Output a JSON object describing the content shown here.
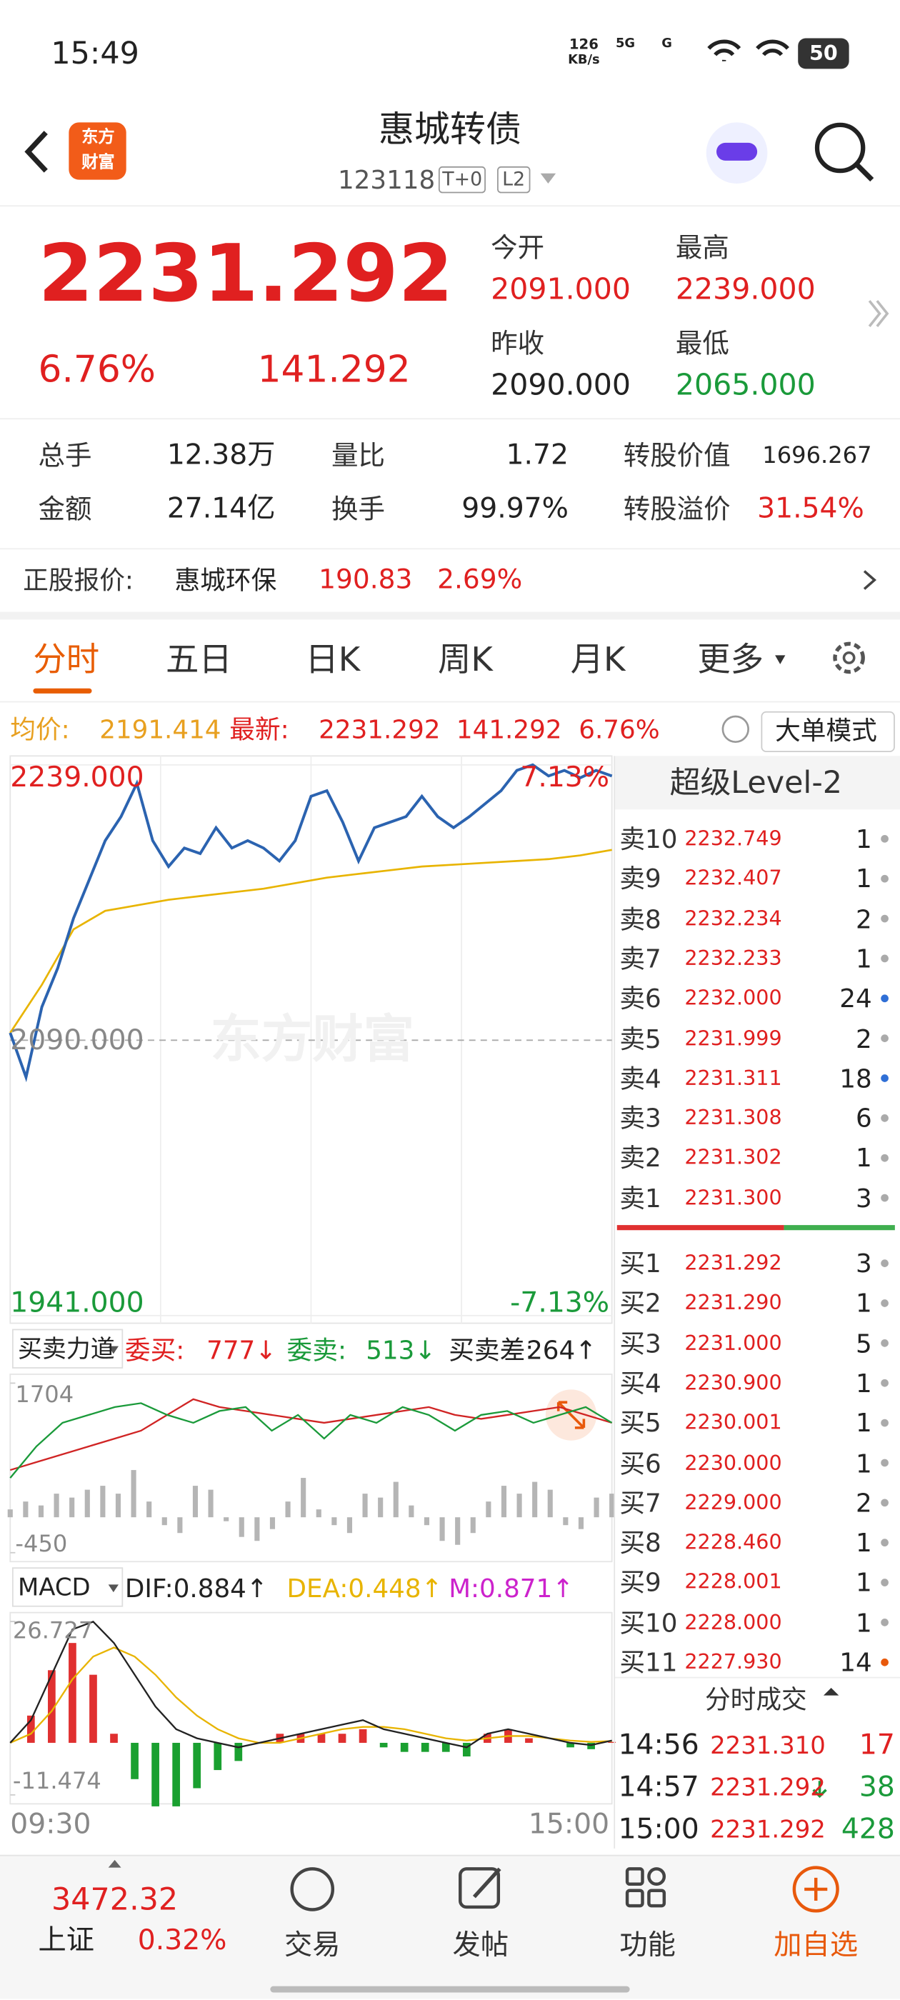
{
  "status_bar": {
    "time": "15:49",
    "net_speed": "126",
    "net_unit": "KB/s",
    "network": [
      "5G",
      "G"
    ],
    "battery": "50"
  },
  "header": {
    "logo": [
      "东方",
      "财富"
    ],
    "title": "惠城转债",
    "code": "123118",
    "tags": [
      "T+0",
      "L2"
    ]
  },
  "quote": {
    "price": "2231.292",
    "change_pct": "6.76%",
    "change": "141.292",
    "open_label": "今开",
    "open": "2091.000",
    "high_label": "最高",
    "high": "2239.000",
    "prev_close_label": "昨收",
    "prev_close": "2090.000",
    "low_label": "最低",
    "low": "2065.000"
  },
  "stats": [
    [
      "总手",
      "12.38万",
      "量比",
      "1.72",
      "转股价值",
      "1696.267"
    ],
    [
      "金额",
      "27.14亿",
      "换手",
      "99.97%",
      "转股溢价",
      "31.54%"
    ]
  ],
  "underlying": {
    "label": "正股报价:",
    "name": "惠城环保",
    "price": "190.83",
    "change_pct": "2.69%"
  },
  "tabs": [
    "分时",
    "五日",
    "日K",
    "周K",
    "月K",
    "更多"
  ],
  "intraday": {
    "avg_label": "均价:",
    "avg": "2191.414",
    "latest_label": "最新:",
    "latest": "2231.292",
    "change": "141.292",
    "change_pct": "6.76%",
    "mode": "大单模式",
    "watermark": "东方财富",
    "ylim": [
      1941,
      2239
    ],
    "yticks": [
      {
        "value": 2239,
        "label": "2239.000"
      },
      {
        "value": 2090,
        "label": "2090.000"
      },
      {
        "value": 1941,
        "label": "1941.000"
      }
    ],
    "pct_labels": [
      "7.13%",
      "-7.13%"
    ],
    "x_labels": [
      "09:30",
      "15:00"
    ],
    "price": [
      2094,
      2070,
      2108,
      2129,
      2156,
      2177,
      2198,
      2211,
      2229,
      2198,
      2184,
      2194,
      2191,
      2205,
      2194,
      2198,
      2194,
      2187,
      2198,
      2222,
      2225,
      2208,
      2187,
      2205,
      2208,
      2211,
      2222,
      2211,
      2205,
      2211,
      2218,
      2225,
      2236,
      2239,
      2233,
      2236,
      2232,
      2236,
      2233
    ],
    "avg_price": [
      2094,
      2120,
      2150,
      2160,
      2163,
      2166,
      2168,
      2170,
      2172,
      2175,
      2178,
      2180,
      2182,
      2184,
      2185,
      2186,
      2187,
      2188,
      2190,
      2193
    ]
  },
  "strength": {
    "name": "买卖力道",
    "bid_label": "委买:",
    "bid": "777↓",
    "ask_label": "委卖:",
    "ask": "513↓",
    "diff_label": "买卖差:",
    "diff": "264↑",
    "ylim": [
      -450,
      1704
    ],
    "yticks": [
      1704,
      -450
    ],
    "buy": [
      600,
      700,
      800,
      900,
      1000,
      1100,
      1300,
      1500,
      1400,
      1350,
      1300,
      1250,
      1200,
      1250,
      1300,
      1350,
      1400,
      1300,
      1250,
      1300,
      1350,
      1400,
      1300,
      1200
    ],
    "sell": [
      500,
      900,
      1200,
      1300,
      1400,
      1450,
      1300,
      1200,
      1350,
      1400,
      1100,
      1300,
      1000,
      1300,
      1200,
      1400,
      1300,
      1100,
      1300,
      1350,
      1200,
      1300,
      1400,
      1200
    ],
    "bars": [
      100,
      200,
      150,
      300,
      250,
      350,
      400,
      300,
      600,
      200,
      -100,
      -200,
      400,
      350,
      -50,
      -250,
      -300,
      -150,
      200,
      500,
      100,
      -100,
      -200,
      300,
      250,
      450,
      150,
      -100,
      -300,
      -350,
      -200,
      200,
      400,
      300,
      450,
      350,
      -100,
      -150,
      250,
      300
    ]
  },
  "macd": {
    "name": "MACD",
    "dif": "DIF:0.884↑",
    "dea": "DEA:0.448↑",
    "m": "M:0.871↑",
    "ylim": [
      -11.474,
      26.727
    ],
    "yticks": [
      26.727,
      -11.474
    ],
    "dif_line": [
      0,
      5,
      15,
      25,
      26.7,
      22,
      15,
      8,
      3,
      1,
      0,
      -1,
      0,
      1,
      2,
      3,
      4,
      5,
      3,
      2,
      1,
      0,
      -1,
      2,
      3,
      2,
      1,
      0,
      -0.5,
      0.5
    ],
    "dea_line": [
      0,
      2,
      7,
      14,
      19,
      21,
      19,
      15,
      10,
      6,
      3,
      1,
      0,
      0,
      1,
      2,
      3,
      3.5,
      3.5,
      3,
      2,
      1,
      0.5,
      1,
      1.5,
      1.5,
      1,
      0.5,
      0.2,
      0.4
    ],
    "m_bars": [
      0,
      6,
      16,
      22,
      15,
      2,
      -8,
      -14,
      -14,
      -10,
      -6,
      -4,
      0,
      2,
      2,
      2,
      2,
      3,
      -1,
      -2,
      -2,
      -2,
      -3,
      2,
      3,
      1,
      0,
      -1,
      -1.4,
      0.2
    ]
  },
  "order_book": {
    "title": "超级Level-2",
    "sells": [
      {
        "label": "卖10",
        "price": "2232.749",
        "qty": 1,
        "dot": "#aaaaaa"
      },
      {
        "label": "卖9",
        "price": "2232.407",
        "qty": 1,
        "dot": "#aaaaaa"
      },
      {
        "label": "卖8",
        "price": "2232.234",
        "qty": 2,
        "dot": "#aaaaaa"
      },
      {
        "label": "卖7",
        "price": "2232.233",
        "qty": 1,
        "dot": "#aaaaaa"
      },
      {
        "label": "卖6",
        "price": "2232.000",
        "qty": 24,
        "dot": "#2f6fd6"
      },
      {
        "label": "卖5",
        "price": "2231.999",
        "qty": 2,
        "dot": "#aaaaaa"
      },
      {
        "label": "卖4",
        "price": "2231.311",
        "qty": 18,
        "dot": "#2f6fd6"
      },
      {
        "label": "卖3",
        "price": "2231.308",
        "qty": 6,
        "dot": "#aaaaaa"
      },
      {
        "label": "卖2",
        "price": "2231.302",
        "qty": 1,
        "dot": "#aaaaaa"
      },
      {
        "label": "卖1",
        "price": "2231.300",
        "qty": 3,
        "dot": "#aaaaaa"
      }
    ],
    "buys": [
      {
        "label": "买1",
        "price": "2231.292",
        "qty": 3,
        "dot": "#aaaaaa"
      },
      {
        "label": "买2",
        "price": "2231.290",
        "qty": 1,
        "dot": "#aaaaaa"
      },
      {
        "label": "买3",
        "price": "2231.000",
        "qty": 5,
        "dot": "#aaaaaa"
      },
      {
        "label": "买4",
        "price": "2230.900",
        "qty": 1,
        "dot": "#aaaaaa"
      },
      {
        "label": "买5",
        "price": "2230.001",
        "qty": 1,
        "dot": "#aaaaaa"
      },
      {
        "label": "买6",
        "price": "2230.000",
        "qty": 1,
        "dot": "#aaaaaa"
      },
      {
        "label": "买7",
        "price": "2229.000",
        "qty": 2,
        "dot": "#aaaaaa"
      },
      {
        "label": "买8",
        "price": "2228.460",
        "qty": 1,
        "dot": "#aaaaaa"
      },
      {
        "label": "买9",
        "price": "2228.001",
        "qty": 1,
        "dot": "#aaaaaa"
      },
      {
        "label": "买10",
        "price": "2228.000",
        "qty": 1,
        "dot": "#aaaaaa"
      },
      {
        "label": "买11",
        "price": "2227.930",
        "qty": 14,
        "dot": "#e8590c"
      }
    ],
    "trades_title": "分时成交",
    "trades": [
      {
        "time": "14:56",
        "price": "2231.310",
        "qty": 17,
        "color": "#e02020"
      },
      {
        "time": "14:57",
        "price": "2231.292",
        "qty": 38,
        "color": "#1a9a3a"
      },
      {
        "time": "15:00",
        "price": "2231.292",
        "qty": 428,
        "color": "#1a9a3a"
      }
    ]
  },
  "bottom_nav": {
    "index_value": "3472.32",
    "index_name": "上证",
    "index_pct": "0.32%",
    "items": [
      "交易",
      "发帖",
      "功能",
      "加自选"
    ]
  }
}
